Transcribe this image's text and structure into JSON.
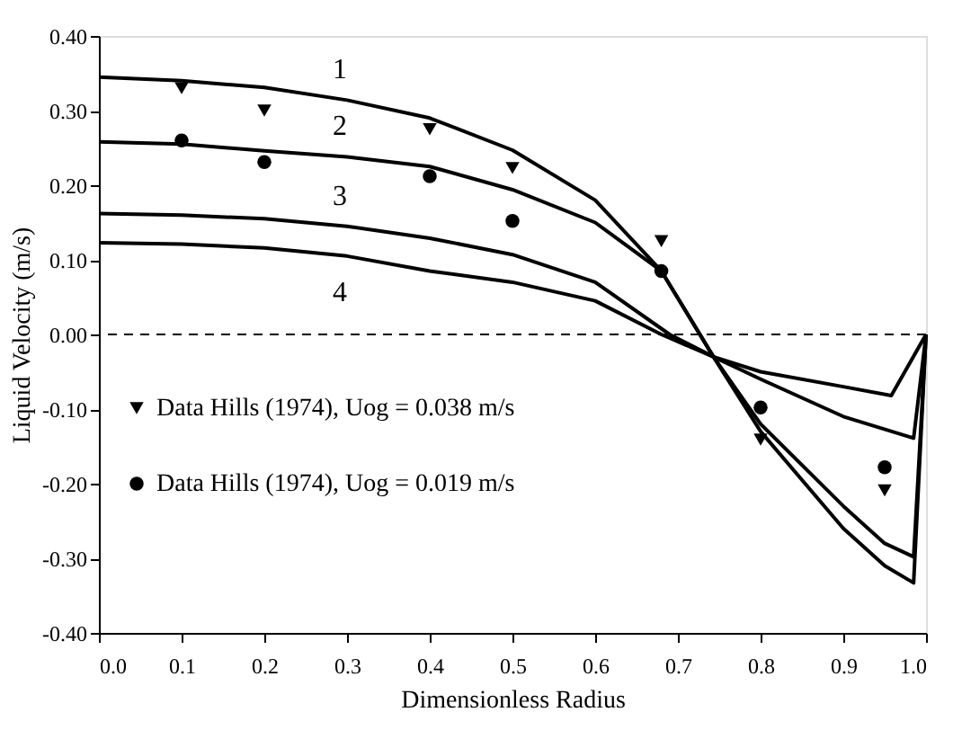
{
  "chart_data": {
    "type": "line",
    "xlabel": "Dimensionless Radius",
    "ylabel": "Liquid Velocity (m/s)",
    "xlim": [
      0,
      1
    ],
    "ylim": [
      -0.4,
      0.4
    ],
    "xticks": [
      {
        "value": 0,
        "label": "0.0"
      },
      0.1,
      0.2,
      0.3,
      0.4,
      0.5,
      0.6,
      0.7,
      0.8,
      0.9,
      {
        "value": 1,
        "label": "1.0"
      }
    ],
    "yticks": [
      {
        "value": -0.4,
        "label": "-0.40"
      },
      {
        "value": -0.3,
        "label": "-0.30"
      },
      {
        "value": -0.2,
        "label": "-0.20"
      },
      {
        "value": -0.1,
        "label": "-0.10"
      },
      {
        "value": 0,
        "label": "0.00"
      },
      {
        "value": 0.1,
        "label": "0.10"
      },
      {
        "value": 0.2,
        "label": "0.20"
      },
      {
        "value": 0.3,
        "label": "0.30"
      },
      {
        "value": 0.4,
        "label": "0.40"
      }
    ],
    "grid": false,
    "legend": "left",
    "line_style": "solid",
    "series": [
      {
        "name": "1",
        "color": "#000000",
        "x": [
          0,
          0.1,
          0.2,
          0.3,
          0.4,
          0.5,
          0.6,
          0.68,
          0.743,
          0.8,
          0.9,
          0.95,
          0.985,
          1
        ],
        "values": [
          0.345,
          0.34,
          0.331,
          0.314,
          0.29,
          0.247,
          0.18,
          0.085,
          -0.03,
          -0.13,
          -0.26,
          -0.31,
          -0.333,
          0
        ]
      },
      {
        "name": "2",
        "color": "#000000",
        "x": [
          0,
          0.1,
          0.2,
          0.3,
          0.4,
          0.5,
          0.6,
          0.68,
          0.743,
          0.8,
          0.9,
          0.95,
          0.985,
          1
        ],
        "values": [
          0.258,
          0.255,
          0.246,
          0.238,
          0.225,
          0.194,
          0.15,
          0.085,
          -0.03,
          -0.12,
          -0.23,
          -0.28,
          -0.298,
          0
        ]
      },
      {
        "name": "3",
        "color": "#000000",
        "x": [
          0,
          0.1,
          0.2,
          0.3,
          0.4,
          0.5,
          0.6,
          0.69,
          0.743,
          0.8,
          0.9,
          0.985,
          1
        ],
        "values": [
          0.162,
          0.16,
          0.155,
          0.145,
          0.129,
          0.107,
          0.07,
          0,
          -0.03,
          -0.06,
          -0.11,
          -0.139,
          0
        ]
      },
      {
        "name": "4",
        "color": "#000000",
        "x": [
          0,
          0.1,
          0.2,
          0.3,
          0.4,
          0.5,
          0.6,
          0.68,
          0.743,
          0.8,
          0.9,
          0.958,
          1
        ],
        "values": [
          0.123,
          0.121,
          0.116,
          0.105,
          0.085,
          0.07,
          0.045,
          0,
          -0.03,
          -0.05,
          -0.07,
          -0.082,
          0
        ]
      },
      {
        "type": "scatter",
        "name": "Data Hills (1974), Uog = 0.038 m/s",
        "color": "#000000",
        "marker": "triangle",
        "x": [
          0.1,
          0.2,
          0.4,
          0.5,
          0.68,
          0.8,
          0.95
        ],
        "values": [
          0.33,
          0.3,
          0.275,
          0.223,
          0.125,
          -0.141,
          -0.209
        ]
      },
      {
        "type": "scatter",
        "name": "Data Hills (1974), Uog = 0.019 m/s",
        "color": "#000000",
        "marker": "circle",
        "x": [
          0.1,
          0.2,
          0.4,
          0.5,
          0.68,
          0.8,
          0.95
        ],
        "values": [
          0.26,
          0.231,
          0.212,
          0.152,
          0.085,
          -0.098,
          -0.178
        ]
      }
    ],
    "ref_lines": [
      {
        "axis": "y",
        "value": 0,
        "line_style": "dashed",
        "color": "#000000"
      }
    ]
  }
}
